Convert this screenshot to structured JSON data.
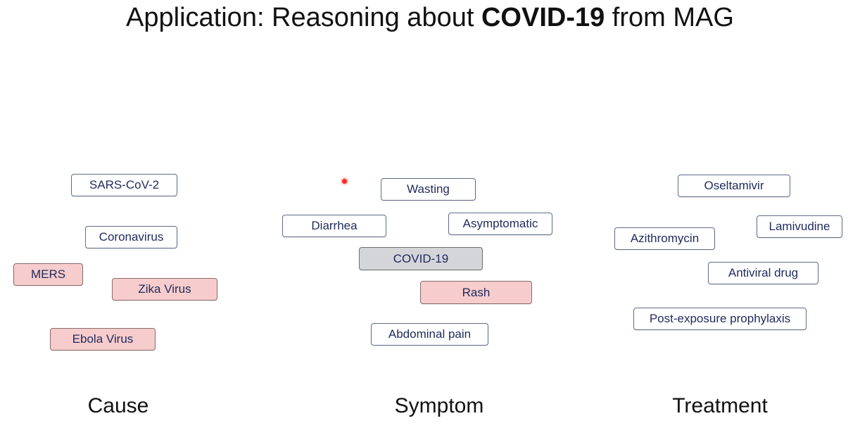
{
  "title": {
    "prefix": "Application: Reasoning about ",
    "bold": "COVID-19",
    "suffix": " from MAG"
  },
  "columns": {
    "cause": "Cause",
    "symptom": "Symptom",
    "treatment": "Treatment"
  },
  "cause_nodes": {
    "sars_cov_2": "SARS-CoV-2",
    "coronavirus": "Coronavirus",
    "mers": "MERS",
    "zika": "Zika Virus",
    "ebola": "Ebola Virus"
  },
  "symptom_nodes": {
    "wasting": "Wasting",
    "diarrhea": "Diarrhea",
    "asymptomatic": "Asymptomatic",
    "covid19": "COVID-19",
    "rash": "Rash",
    "abdominal_pain": "Abdominal pain"
  },
  "treatment_nodes": {
    "oseltamivir": "Oseltamivir",
    "lamivudine": "Lamivudine",
    "azithromycin": "Azithromycin",
    "antiviral": "Antiviral drug",
    "pep": "Post-exposure prophylaxis"
  },
  "colors": {
    "highlight": "#f6cccc",
    "query_node": "#d4d5d9",
    "node_text": "#1f2a5c",
    "pointer": "#ff2a2a"
  }
}
